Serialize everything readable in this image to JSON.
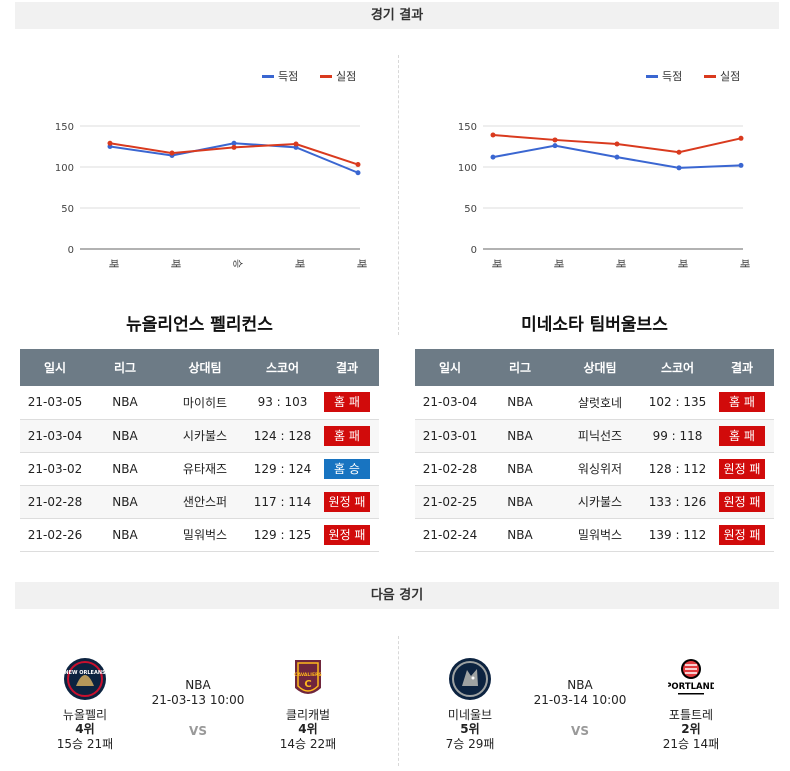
{
  "sections": {
    "results_title": "경기 결과",
    "next_title": "다음 경기"
  },
  "legend": {
    "scored": "득점",
    "conceded": "실점",
    "scored_color": "#3a66d1",
    "conceded_color": "#d93a1e"
  },
  "chart_data": [
    {
      "type": "line",
      "categories": [
        "패",
        "패",
        "승",
        "패",
        "패"
      ],
      "series": [
        {
          "name": "득점",
          "values": [
            125,
            114,
            129,
            124,
            93
          ]
        },
        {
          "name": "실점",
          "values": [
            129,
            117,
            124,
            128,
            103
          ]
        }
      ],
      "yticks": [
        "0",
        "50",
        "100",
        "150"
      ],
      "ylim": [
        0,
        150
      ],
      "grid": true,
      "legend_position": "top-right"
    },
    {
      "type": "line",
      "categories": [
        "패",
        "패",
        "패",
        "패",
        "패"
      ],
      "series": [
        {
          "name": "득점",
          "values": [
            112,
            126,
            112,
            99,
            102
          ]
        },
        {
          "name": "실점",
          "values": [
            139,
            133,
            128,
            118,
            135
          ]
        }
      ],
      "yticks": [
        "0",
        "50",
        "100",
        "150"
      ],
      "ylim": [
        0,
        150
      ],
      "grid": true,
      "legend_position": "top-right"
    }
  ],
  "columns": [
    "일시",
    "리그",
    "상대팀",
    "스코어",
    "결과"
  ],
  "teams": [
    {
      "name": "뉴올리언스 펠리컨스",
      "rows": [
        {
          "date": "21-03-05",
          "league": "NBA",
          "opp": "마이히트",
          "score": "93 : 103",
          "result": "홈 패",
          "color": "red"
        },
        {
          "date": "21-03-04",
          "league": "NBA",
          "opp": "시카불스",
          "score": "124 : 128",
          "result": "홈 패",
          "color": "red"
        },
        {
          "date": "21-03-02",
          "league": "NBA",
          "opp": "유타재즈",
          "score": "129 : 124",
          "result": "홈 승",
          "color": "blue"
        },
        {
          "date": "21-02-28",
          "league": "NBA",
          "opp": "샌안스퍼",
          "score": "117 : 114",
          "result": "원정 패",
          "color": "red"
        },
        {
          "date": "21-02-26",
          "league": "NBA",
          "opp": "밀워벅스",
          "score": "129 : 125",
          "result": "원정 패",
          "color": "red"
        }
      ]
    },
    {
      "name": "미네소타 팀버울브스",
      "rows": [
        {
          "date": "21-03-04",
          "league": "NBA",
          "opp": "샬럿호네",
          "score": "102 : 135",
          "result": "홈 패",
          "color": "red"
        },
        {
          "date": "21-03-01",
          "league": "NBA",
          "opp": "피닉선즈",
          "score": "99 : 118",
          "result": "홈 패",
          "color": "red"
        },
        {
          "date": "21-02-28",
          "league": "NBA",
          "opp": "워싱위저",
          "score": "128 : 112",
          "result": "원정 패",
          "color": "red"
        },
        {
          "date": "21-02-25",
          "league": "NBA",
          "opp": "시카불스",
          "score": "133 : 126",
          "result": "원정 패",
          "color": "red"
        },
        {
          "date": "21-02-24",
          "league": "NBA",
          "opp": "밀워벅스",
          "score": "139 : 112",
          "result": "원정 패",
          "color": "red"
        }
      ]
    }
  ],
  "next_games": [
    {
      "league": "NBA",
      "time": "21-03-13 10:00",
      "vs": "VS",
      "home": {
        "name": "뉴올펠리",
        "rank": "4위",
        "record": "15승 21패",
        "logo": "pelicans-logo",
        "logo_text": "NEW ORLEANS"
      },
      "away": {
        "name": "클리캐벌",
        "rank": "4위",
        "record": "14승 22패",
        "logo": "cavaliers-logo",
        "logo_text": "CAVALIERS"
      }
    },
    {
      "league": "NBA",
      "time": "21-03-14 10:00",
      "vs": "VS",
      "home": {
        "name": "미네울브",
        "rank": "5위",
        "record": "7승 29패",
        "logo": "timberwolves-logo",
        "logo_text": ""
      },
      "away": {
        "name": "포틀트레",
        "rank": "2위",
        "record": "21승 14패",
        "logo": "trailblazers-logo",
        "logo_text": "PORTLAND"
      }
    }
  ]
}
